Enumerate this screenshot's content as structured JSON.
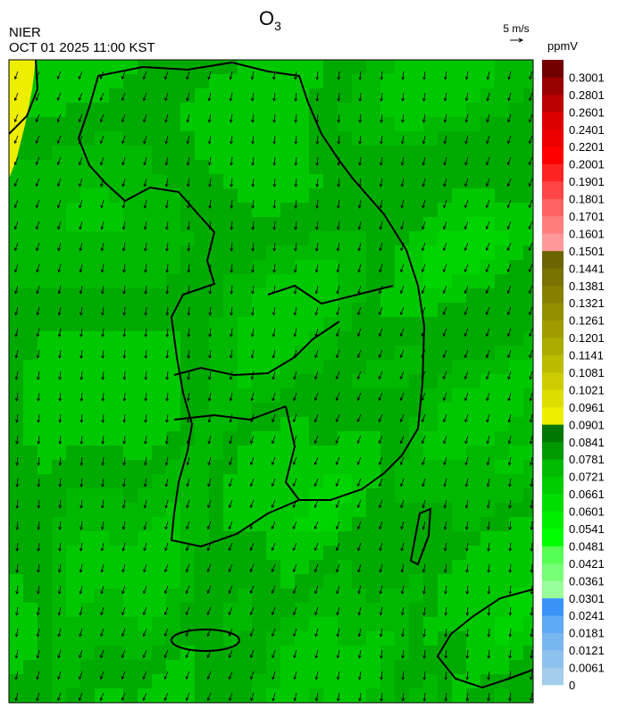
{
  "header": {
    "title_base": "O",
    "title_subscript": "3",
    "agency": "NIER",
    "timestamp": "OCT 01 2025 11:00 KST",
    "wind_scale": "5 m/s"
  },
  "colorbar": {
    "unit": "ppmV",
    "levels": [
      0,
      0.0061,
      0.0121,
      0.0181,
      0.0241,
      0.0301,
      0.0361,
      0.0421,
      0.0481,
      0.0541,
      0.0601,
      0.0661,
      0.0721,
      0.0781,
      0.0841,
      0.0901,
      0.0961,
      0.1021,
      0.1081,
      0.1141,
      0.1201,
      0.1261,
      0.1321,
      0.1381,
      0.1441,
      0.1501,
      0.1601,
      0.1701,
      0.1801,
      0.1901,
      0.2001,
      0.2201,
      0.2401,
      0.2601,
      0.2801,
      0.3001
    ],
    "colors": [
      "#a3cdea",
      "#8ec2ee",
      "#78b6f0",
      "#5fa8f3",
      "#3a94f7",
      "#99ff99",
      "#77ff77",
      "#55ff55",
      "#00ff00",
      "#00ee00",
      "#00dd00",
      "#00cc00",
      "#00bb00",
      "#009900",
      "#007700",
      "#eeee00",
      "#dddd00",
      "#cccc00",
      "#bbbb00",
      "#aaaa00",
      "#a09c00",
      "#948f00",
      "#877f00",
      "#7a7200",
      "#6c6400",
      "#ff9999",
      "#ff7f7f",
      "#ff6363",
      "#ff4646",
      "#ff2424",
      "#ff0000",
      "#ee0000",
      "#dd0000",
      "#bb0000",
      "#990000",
      "#730000"
    ]
  }
}
